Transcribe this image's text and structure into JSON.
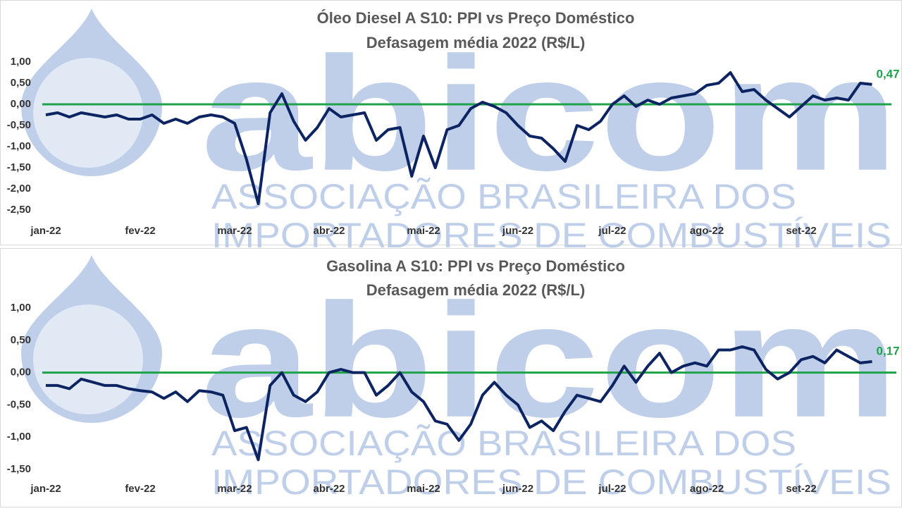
{
  "watermark": {
    "name": "abicom",
    "line1": "ASSOCIAÇÃO BRASILEIRA DOS",
    "line2": "IMPORTADORES DE COMBUSTÍVEIS"
  },
  "chart_data": [
    {
      "type": "line",
      "title": "Óleo Diesel A S10: PPI vs Preço Doméstico",
      "subtitle": "Defasagem média 2022 (R$/L)",
      "categories": [
        "jan-22",
        null,
        null,
        null,
        null,
        null,
        null,
        null,
        "fev-22",
        null,
        null,
        null,
        null,
        null,
        null,
        null,
        "mar-22",
        null,
        null,
        null,
        null,
        null,
        null,
        null,
        "abr-22",
        null,
        null,
        null,
        null,
        null,
        null,
        null,
        "mai-22",
        null,
        null,
        null,
        null,
        null,
        null,
        null,
        "jun-22",
        null,
        null,
        null,
        null,
        null,
        null,
        null,
        "jul-22",
        null,
        null,
        null,
        null,
        null,
        null,
        null,
        "ago-22",
        null,
        null,
        null,
        null,
        null,
        null,
        null,
        "set-22",
        null,
        null,
        null,
        null,
        null,
        null
      ],
      "series": [
        {
          "color": "#0d2463",
          "values": [
            -0.25,
            -0.2,
            -0.3,
            -0.2,
            -0.25,
            -0.3,
            -0.25,
            -0.35,
            -0.35,
            -0.25,
            -0.45,
            -0.35,
            -0.45,
            -0.3,
            -0.25,
            -0.3,
            -0.45,
            -1.3,
            -2.35,
            -0.2,
            0.25,
            -0.4,
            -0.85,
            -0.55,
            -0.1,
            -0.3,
            -0.25,
            -0.2,
            -0.85,
            -0.6,
            -0.55,
            -1.7,
            -0.75,
            -1.5,
            -0.6,
            -0.5,
            -0.1,
            0.05,
            -0.05,
            -0.2,
            -0.5,
            -0.75,
            -0.8,
            -1.05,
            -1.35,
            -0.5,
            -0.6,
            -0.4,
            0.0,
            0.2,
            -0.05,
            0.1,
            0.0,
            0.15,
            0.2,
            0.25,
            0.45,
            0.5,
            0.75,
            0.3,
            0.35,
            0.1,
            -0.1,
            -0.3,
            -0.05,
            0.2,
            0.1,
            0.15,
            0.1,
            0.5,
            0.47
          ],
          "value_labels": [
            null,
            null,
            null,
            null,
            null,
            null,
            null,
            null,
            null,
            null,
            null,
            null,
            null,
            null,
            null,
            null,
            null,
            null,
            null,
            null,
            null,
            null,
            null,
            null,
            null,
            null,
            null,
            null,
            null,
            null,
            null,
            null,
            null,
            null,
            null,
            null,
            null,
            null,
            null,
            null,
            null,
            null,
            null,
            null,
            null,
            null,
            null,
            null,
            null,
            null,
            null,
            null,
            null,
            null,
            null,
            null,
            null,
            null,
            null,
            null,
            null,
            null,
            null,
            null,
            null,
            null,
            null,
            null,
            null,
            null,
            "0,47"
          ],
          "value_label_color": "#1fa34a"
        }
      ],
      "ylim": [
        -2.5,
        1.0
      ],
      "yticks": [
        {
          "value": -2.5,
          "label": "-2,50"
        },
        {
          "value": -2.0,
          "label": "-2,00"
        },
        {
          "value": -1.5,
          "label": "-1,50"
        },
        {
          "value": -1.0,
          "label": "-1,00"
        },
        {
          "value": -0.5,
          "label": "-0,50"
        },
        {
          "value": 0,
          "label": "0,00"
        },
        {
          "value": 0.5,
          "label": "0,50"
        },
        {
          "value": 1.0,
          "label": "1,00"
        }
      ],
      "reference_line": {
        "value": 0,
        "color": "#1fa34a"
      },
      "grid": false
    },
    {
      "type": "line",
      "title": "Gasolina A S10: PPI vs Preço Doméstico",
      "subtitle": "Defasagem média 2022 (R$/L)",
      "categories": [
        "jan-22",
        null,
        null,
        null,
        null,
        null,
        null,
        null,
        "fev-22",
        null,
        null,
        null,
        null,
        null,
        null,
        null,
        "mar-22",
        null,
        null,
        null,
        null,
        null,
        null,
        null,
        "abr-22",
        null,
        null,
        null,
        null,
        null,
        null,
        null,
        "mai-22",
        null,
        null,
        null,
        null,
        null,
        null,
        null,
        "jun-22",
        null,
        null,
        null,
        null,
        null,
        null,
        null,
        "jul-22",
        null,
        null,
        null,
        null,
        null,
        null,
        null,
        "ago-22",
        null,
        null,
        null,
        null,
        null,
        null,
        null,
        "set-22",
        null,
        null,
        null,
        null,
        null,
        null
      ],
      "series": [
        {
          "color": "#0d2463",
          "values": [
            -0.2,
            -0.2,
            -0.25,
            -0.1,
            -0.15,
            -0.2,
            -0.2,
            -0.25,
            -0.28,
            -0.3,
            -0.4,
            -0.3,
            -0.45,
            -0.28,
            -0.3,
            -0.35,
            -0.9,
            -0.85,
            -1.35,
            -0.2,
            0.0,
            -0.35,
            -0.45,
            -0.3,
            0.0,
            0.05,
            0.0,
            0.0,
            -0.35,
            -0.2,
            0.0,
            -0.3,
            -0.45,
            -0.75,
            -0.8,
            -1.05,
            -0.8,
            -0.35,
            -0.15,
            -0.35,
            -0.5,
            -0.85,
            -0.75,
            -0.9,
            -0.6,
            -0.35,
            -0.4,
            -0.45,
            -0.2,
            0.1,
            -0.15,
            0.1,
            0.3,
            0.0,
            0.1,
            0.15,
            0.1,
            0.35,
            0.35,
            0.4,
            0.35,
            0.05,
            -0.1,
            0.0,
            0.2,
            0.25,
            0.15,
            0.35,
            0.25,
            0.15,
            0.17
          ],
          "value_labels": [
            null,
            null,
            null,
            null,
            null,
            null,
            null,
            null,
            null,
            null,
            null,
            null,
            null,
            null,
            null,
            null,
            null,
            null,
            null,
            null,
            null,
            null,
            null,
            null,
            null,
            null,
            null,
            null,
            null,
            null,
            null,
            null,
            null,
            null,
            null,
            null,
            null,
            null,
            null,
            null,
            null,
            null,
            null,
            null,
            null,
            null,
            null,
            null,
            null,
            null,
            null,
            null,
            null,
            null,
            null,
            null,
            null,
            null,
            null,
            null,
            null,
            null,
            null,
            null,
            null,
            null,
            null,
            null,
            null,
            null,
            "0,17"
          ],
          "value_label_color": "#1fa34a"
        }
      ],
      "ylim": [
        -1.5,
        1.0
      ],
      "yticks": [
        {
          "value": -1.5,
          "label": "-1,50"
        },
        {
          "value": -1.0,
          "label": "-1,00"
        },
        {
          "value": -0.5,
          "label": "-0,50"
        },
        {
          "value": 0,
          "label": "0,00"
        },
        {
          "value": 0.5,
          "label": "0,50"
        },
        {
          "value": 1.0,
          "label": "1,00"
        }
      ],
      "reference_line": {
        "value": 0,
        "color": "#1fa34a"
      },
      "grid": false
    }
  ]
}
